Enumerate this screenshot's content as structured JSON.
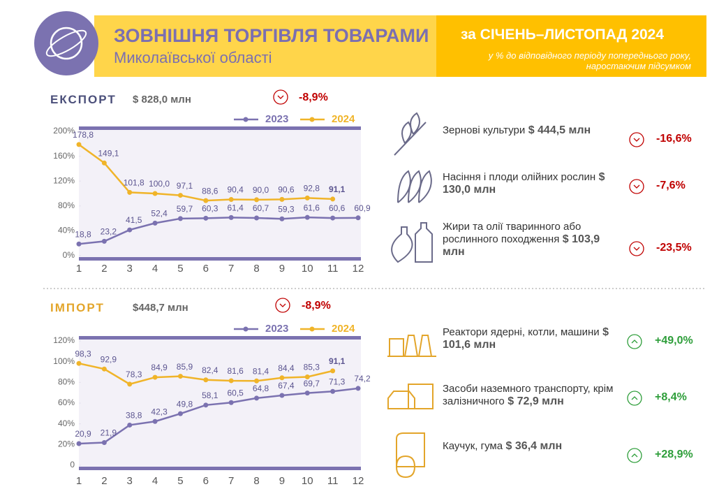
{
  "header": {
    "title": "ЗОВНІШНЯ ТОРГІВЛЯ ТОВАРАМИ",
    "subtitle": "Миколаївської області",
    "period": "за СІЧЕНЬ–ЛИСТОПАД 2024",
    "note": [
      "у % до відповідного періоду попереднього року,",
      "наростаючим підсумком"
    ]
  },
  "export": {
    "label": "ЕКСПОРТ",
    "amount": "$ 828,0 млн",
    "change": "-8,9%",
    "items": [
      {
        "name": "Зернові культури",
        "amount": "$ 444,5 млн",
        "change": "-16,6%"
      },
      {
        "name": "Насіння і плоди олійних рослин",
        "amount": "$ 130,0 млн",
        "change": "-7,6%"
      },
      {
        "name": "Жири та олії тваринного або рослинного походження",
        "amount": "$ 103,9 млн",
        "change": "-23,5%"
      }
    ]
  },
  "import": {
    "label": "ІМПОРТ",
    "amount": "$448,7 млн",
    "change": "-8,9%",
    "items": [
      {
        "name": "Реактори ядерні, котли, машини",
        "amount": "$ 101,6 млн",
        "change": "+49,0%"
      },
      {
        "name": "Засоби наземного транспорту, крім залізничного",
        "amount": "$ 72,9 млн",
        "change": "+8,4%"
      },
      {
        "name": "Каучук, гума",
        "amount": "$ 36,4 млн",
        "change": "+28,9%"
      }
    ]
  },
  "chart_data": [
    {
      "type": "line",
      "categories": [
        "1",
        "2",
        "3",
        "4",
        "5",
        "6",
        "7",
        "8",
        "9",
        "10",
        "11",
        "12"
      ],
      "series": [
        {
          "name": "2023",
          "color": "#7b72b0",
          "values": [
            18.8,
            23.2,
            41.5,
            52.4,
            59.7,
            60.3,
            61.4,
            60.7,
            59.3,
            61.6,
            60.6,
            60.9
          ],
          "value_labels": [
            "18,8",
            "23,2",
            "41,5",
            "52,4",
            "59,7",
            "60,3",
            "61,4",
            "60,7",
            "59,3",
            "61,6",
            "60,6",
            "60,9"
          ]
        },
        {
          "name": "2024",
          "color": "#f0b429",
          "values": [
            178.8,
            149.1,
            101.8,
            100.0,
            97.1,
            88.6,
            90.4,
            90.0,
            90.6,
            92.8,
            91.1,
            null
          ],
          "value_labels": [
            "178,8",
            "149,1",
            "101,8",
            "100,0",
            "97,1",
            "88,6",
            "90,4",
            "90,0",
            "90,6",
            "92,8",
            "91,1",
            null
          ]
        }
      ],
      "ylim": [
        0,
        200
      ],
      "yticks": [
        {
          "value": 0,
          "label": "0%"
        },
        {
          "value": 40,
          "label": "40%"
        },
        {
          "value": 80,
          "label": "80%"
        },
        {
          "value": 120,
          "label": "120%"
        },
        {
          "value": 160,
          "label": "160%"
        },
        {
          "value": 200,
          "label": "200%"
        }
      ]
    },
    {
      "type": "line",
      "categories": [
        "1",
        "2",
        "3",
        "4",
        "5",
        "6",
        "7",
        "8",
        "9",
        "10",
        "11",
        "12"
      ],
      "series": [
        {
          "name": "2023",
          "color": "#7b72b0",
          "values": [
            20.9,
            21.9,
            38.8,
            42.3,
            49.8,
            58.1,
            60.5,
            64.8,
            67.4,
            69.7,
            71.3,
            74.2
          ],
          "value_labels": [
            "20,9",
            "21,9",
            "38,8",
            "42,3",
            "49,8",
            "58,1",
            "60,5",
            "64,8",
            "67,4",
            "69,7",
            "71,3",
            "74,2"
          ]
        },
        {
          "name": "2024",
          "color": "#f0b429",
          "values": [
            98.3,
            92.9,
            78.3,
            84.9,
            85.9,
            82.4,
            81.6,
            81.4,
            84.4,
            85.3,
            91.1,
            null
          ],
          "value_labels": [
            "98,3",
            "92,9",
            "78,3",
            "84,9",
            "85,9",
            "82,4",
            "81,6",
            "81,4",
            "84,4",
            "85,3",
            "91,1",
            null
          ]
        }
      ],
      "ylim": [
        0,
        120
      ],
      "yticks": [
        0,
        {
          "value": 20,
          "label": "20%"
        },
        {
          "value": 40,
          "label": "40%"
        },
        {
          "value": 60,
          "label": "60%"
        },
        {
          "value": 80,
          "label": "80%"
        },
        {
          "value": 100,
          "label": "100%"
        },
        {
          "value": 120,
          "label": "120%"
        }
      ]
    }
  ]
}
